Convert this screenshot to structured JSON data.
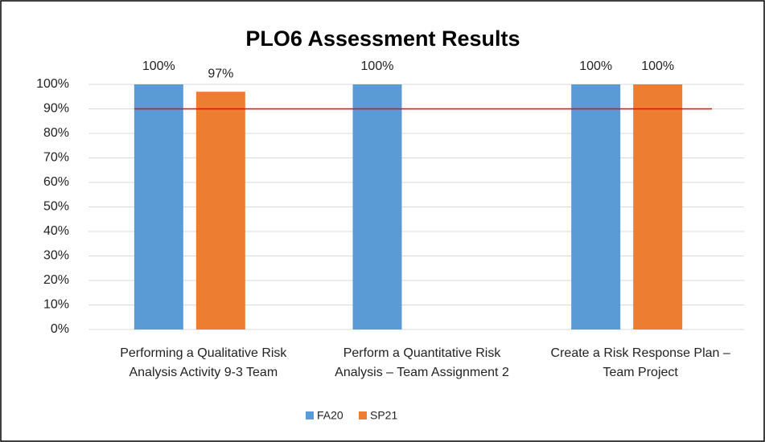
{
  "chart_data": {
    "type": "bar",
    "title": "PLO6 Assessment Results",
    "categories": [
      [
        "Performing a Qualitative Risk",
        "Analysis Activity 9-3 Team"
      ],
      [
        "Perform a Quantitative Risk",
        "Analysis – Team Assignment 2"
      ],
      [
        "Create a Risk Response Plan –",
        "Team Project"
      ]
    ],
    "series": [
      {
        "name": "FA20",
        "color": "#5b9bd5",
        "values": [
          100,
          100,
          100
        ],
        "value_labels": [
          "100%",
          "100%",
          "100%"
        ]
      },
      {
        "name": "SP21",
        "color": "#ed7d31",
        "values": [
          97,
          null,
          100
        ],
        "value_labels": [
          "97%",
          null,
          "100%"
        ]
      }
    ],
    "ylim": [
      0,
      100
    ],
    "yticks": [
      {
        "value": 0,
        "label": "0%"
      },
      {
        "value": 10,
        "label": "10%"
      },
      {
        "value": 20,
        "label": "20%"
      },
      {
        "value": 30,
        "label": "30%"
      },
      {
        "value": 40,
        "label": "40%"
      },
      {
        "value": 50,
        "label": "50%"
      },
      {
        "value": 60,
        "label": "60%"
      },
      {
        "value": 70,
        "label": "70%"
      },
      {
        "value": 80,
        "label": "80%"
      },
      {
        "value": 90,
        "label": "90%"
      },
      {
        "value": 100,
        "label": "100%"
      }
    ],
    "grid": true,
    "reference_line": {
      "value": 90,
      "color": "#ff0000"
    },
    "legend": "bottom"
  }
}
